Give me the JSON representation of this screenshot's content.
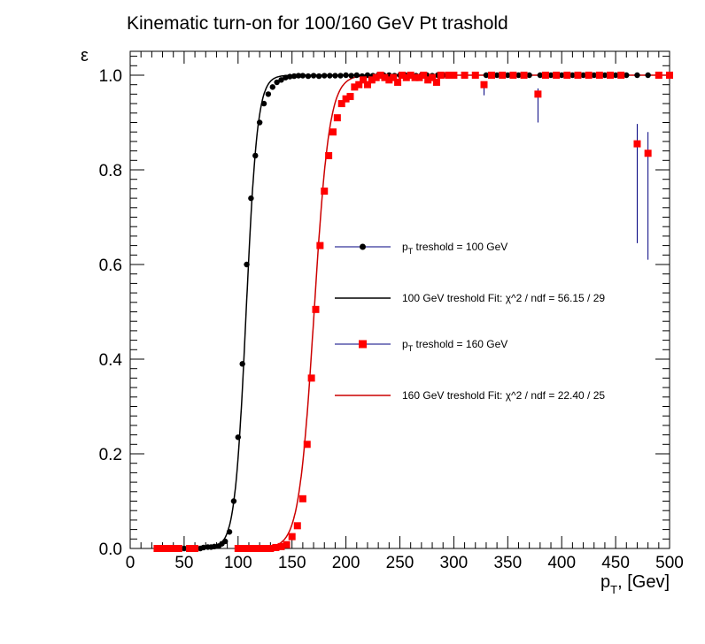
{
  "chart_data": {
    "type": "scatter",
    "title": "Kinematic turn-on for 100/160 GeV Pt trashold",
    "xlabel": {
      "main": "p",
      "sub": "T",
      "rest": ", [Gev]"
    },
    "ylabel": "ε",
    "xlim": [
      0,
      500
    ],
    "ylim": [
      0,
      1.05
    ],
    "x_ticks": [
      0,
      50,
      100,
      150,
      200,
      250,
      300,
      350,
      400,
      450,
      500
    ],
    "x_tick_labels": [
      "0",
      "50",
      "100",
      "150",
      "200",
      "250",
      "300",
      "350",
      "400",
      "450",
      "500"
    ],
    "y_ticks": [
      0,
      0.2,
      0.4,
      0.6,
      0.8,
      1.0
    ],
    "y_tick_labels": [
      "0.0",
      "0.2",
      "0.4",
      "0.6",
      "0.8",
      "1.0"
    ],
    "grid": false,
    "legend_position": "center-right",
    "legend": [
      {
        "kind": "marker-circle",
        "color": "#000080",
        "marker_color": "#000000",
        "text_main": "p",
        "text_sub": "T",
        "text_rest": " treshold = 100 GeV"
      },
      {
        "kind": "line",
        "color": "#000000",
        "text_main": "100 GeV treshold Fit: χ^2 / ndf = 56.15 / 29",
        "text_sub": "",
        "text_rest": ""
      },
      {
        "kind": "marker-square",
        "color": "#000080",
        "marker_color": "#ff0000",
        "text_main": "p",
        "text_sub": "T",
        "text_rest": " treshold = 160 GeV"
      },
      {
        "kind": "line",
        "color": "#cc0000",
        "text_main": "160 GeV treshold Fit: χ^2 / ndf = 22.40 / 25",
        "text_sub": "",
        "text_rest": ""
      }
    ],
    "series": [
      {
        "marker": "circle",
        "color": "#000000",
        "error_color": "#000080",
        "points": [
          [
            25,
            0
          ],
          [
            30,
            0
          ],
          [
            35,
            0
          ],
          [
            40,
            0
          ],
          [
            45,
            0
          ],
          [
            50,
            0
          ],
          [
            55,
            0
          ],
          [
            60,
            0
          ],
          [
            65,
            0
          ],
          [
            68,
            0.002
          ],
          [
            72,
            0.003
          ],
          [
            75,
            0.003
          ],
          [
            78,
            0.004
          ],
          [
            82,
            0.005
          ],
          [
            85,
            0.01
          ],
          [
            88,
            0.015
          ],
          [
            92,
            0.035
          ],
          [
            96,
            0.1
          ],
          [
            100,
            0.235
          ],
          [
            104,
            0.39
          ],
          [
            108,
            0.6
          ],
          [
            112,
            0.74
          ],
          [
            116,
            0.83
          ],
          [
            120,
            0.9
          ],
          [
            124,
            0.94
          ],
          [
            128,
            0.96
          ],
          [
            132,
            0.975
          ],
          [
            136,
            0.985
          ],
          [
            140,
            0.99
          ],
          [
            144,
            0.995
          ],
          [
            148,
            0.997
          ],
          [
            152,
            0.998
          ],
          [
            156,
            0.999
          ],
          [
            160,
            0.999
          ],
          [
            165,
            0.998
          ],
          [
            170,
            0.999
          ],
          [
            175,
            0.998
          ],
          [
            180,
            0.999
          ],
          [
            185,
            0.999
          ],
          [
            190,
            0.999
          ],
          [
            195,
            0.999
          ],
          [
            200,
            1.0
          ],
          [
            205,
            0.999
          ],
          [
            210,
            1.0
          ],
          [
            215,
            0.998
          ],
          [
            220,
            1.0
          ],
          [
            225,
            0.999
          ],
          [
            230,
            1.0
          ],
          [
            235,
            1.0
          ],
          [
            240,
            1.0
          ],
          [
            245,
            0.999
          ],
          [
            250,
            1.0
          ],
          [
            255,
            1.0
          ],
          [
            260,
            1.0
          ],
          [
            265,
            0.999
          ],
          [
            270,
            1.0
          ],
          [
            275,
            1.0
          ],
          [
            280,
            0.999
          ],
          [
            285,
            1.0
          ],
          [
            290,
            1.0
          ],
          [
            295,
            1.0
          ],
          [
            300,
            1.0
          ],
          [
            310,
            1.0
          ],
          [
            320,
            1.0
          ],
          [
            330,
            1.0
          ],
          [
            340,
            1.0
          ],
          [
            350,
            1.0
          ],
          [
            360,
            1.0
          ],
          [
            370,
            1.0
          ],
          [
            380,
            1.0
          ],
          [
            390,
            1.0
          ],
          [
            400,
            1.0
          ],
          [
            410,
            1.0
          ],
          [
            420,
            1.0
          ],
          [
            430,
            1.0
          ],
          [
            440,
            1.0
          ],
          [
            450,
            1.0
          ],
          [
            460,
            1.0
          ],
          [
            470,
            1.0
          ],
          [
            480,
            1.0
          ],
          [
            490,
            1.0
          ],
          [
            500,
            1.0
          ]
        ],
        "errors": [
          [
            478,
            0.0,
            0.0
          ]
        ],
        "fit": {
          "mu": 107.5,
          "sigma": 5.2,
          "color": "#000000",
          "x_range": [
            60,
            300
          ]
        }
      },
      {
        "marker": "square",
        "color": "#ff0000",
        "error_color": "#000080",
        "points": [
          [
            25,
            0
          ],
          [
            30,
            0
          ],
          [
            35,
            0
          ],
          [
            40,
            0
          ],
          [
            45,
            0
          ],
          [
            55,
            0
          ],
          [
            60,
            0
          ],
          [
            100,
            0
          ],
          [
            105,
            0
          ],
          [
            110,
            0
          ],
          [
            115,
            0
          ],
          [
            120,
            0
          ],
          [
            125,
            0
          ],
          [
            130,
            0
          ],
          [
            135,
            0.002
          ],
          [
            140,
            0.004
          ],
          [
            145,
            0.008
          ],
          [
            150,
            0.025
          ],
          [
            155,
            0.048
          ],
          [
            160,
            0.105
          ],
          [
            164,
            0.22
          ],
          [
            168,
            0.36
          ],
          [
            172,
            0.505
          ],
          [
            176,
            0.64
          ],
          [
            180,
            0.755
          ],
          [
            184,
            0.83
          ],
          [
            188,
            0.88
          ],
          [
            192,
            0.91
          ],
          [
            196,
            0.94
          ],
          [
            200,
            0.95
          ],
          [
            204,
            0.955
          ],
          [
            208,
            0.975
          ],
          [
            212,
            0.98
          ],
          [
            216,
            0.99
          ],
          [
            220,
            0.98
          ],
          [
            224,
            0.99
          ],
          [
            228,
            0.995
          ],
          [
            232,
            1.0
          ],
          [
            236,
            0.995
          ],
          [
            240,
            0.99
          ],
          [
            244,
            0.995
          ],
          [
            248,
            0.985
          ],
          [
            252,
            1.0
          ],
          [
            256,
            0.995
          ],
          [
            260,
            1.0
          ],
          [
            264,
            0.995
          ],
          [
            268,
            0.995
          ],
          [
            272,
            1.0
          ],
          [
            276,
            0.99
          ],
          [
            280,
            0.995
          ],
          [
            284,
            0.985
          ],
          [
            288,
            1.0
          ],
          [
            295,
            1.0
          ],
          [
            300,
            1.0
          ],
          [
            310,
            1.0
          ],
          [
            320,
            1.0
          ],
          [
            328,
            0.98
          ],
          [
            335,
            1.0
          ],
          [
            345,
            1.0
          ],
          [
            355,
            1.0
          ],
          [
            365,
            1.0
          ],
          [
            378,
            0.96
          ],
          [
            385,
            1.0
          ],
          [
            395,
            1.0
          ],
          [
            405,
            1.0
          ],
          [
            415,
            1.0
          ],
          [
            425,
            1.0
          ],
          [
            435,
            1.0
          ],
          [
            445,
            1.0
          ],
          [
            455,
            1.0
          ],
          [
            470,
            0.855
          ],
          [
            480,
            0.835
          ],
          [
            490,
            1.0
          ],
          [
            500,
            1.0
          ]
        ],
        "errors": [
          [
            328,
            0.98,
            0.015
          ],
          [
            378,
            0.96,
            0.04
          ],
          [
            470,
            0.855,
            0.14
          ],
          [
            480,
            0.835,
            0.15
          ]
        ],
        "fit": {
          "mu": 170.5,
          "sigma": 7.0,
          "color": "#cc0000",
          "x_range": [
            135,
            500
          ]
        }
      }
    ]
  }
}
